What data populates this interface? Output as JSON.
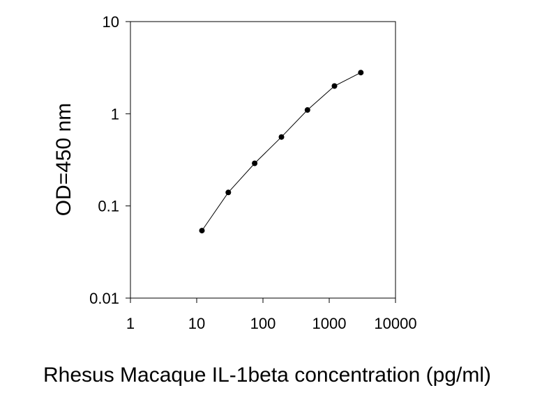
{
  "chart_data": {
    "type": "scatter",
    "title": "",
    "xlabel": "Rhesus Macaque IL-1beta concentration (pg/ml)",
    "ylabel": "OD=450 nm",
    "xscale": "log",
    "yscale": "log",
    "xlim": [
      1,
      10000
    ],
    "ylim": [
      0.01,
      10
    ],
    "xticks": [
      "1",
      "10",
      "100",
      "1000",
      "10000"
    ],
    "yticks": [
      "0.01",
      "0.1",
      "1",
      "10"
    ],
    "grid": false,
    "legend": "none",
    "series": [
      {
        "x": [
          12,
          30,
          75,
          190,
          470,
          1200,
          3000
        ],
        "y": [
          0.054,
          0.14,
          0.29,
          0.56,
          1.1,
          2.0,
          2.8
        ],
        "line": true,
        "marker": "circle",
        "color": "#000000"
      }
    ]
  }
}
